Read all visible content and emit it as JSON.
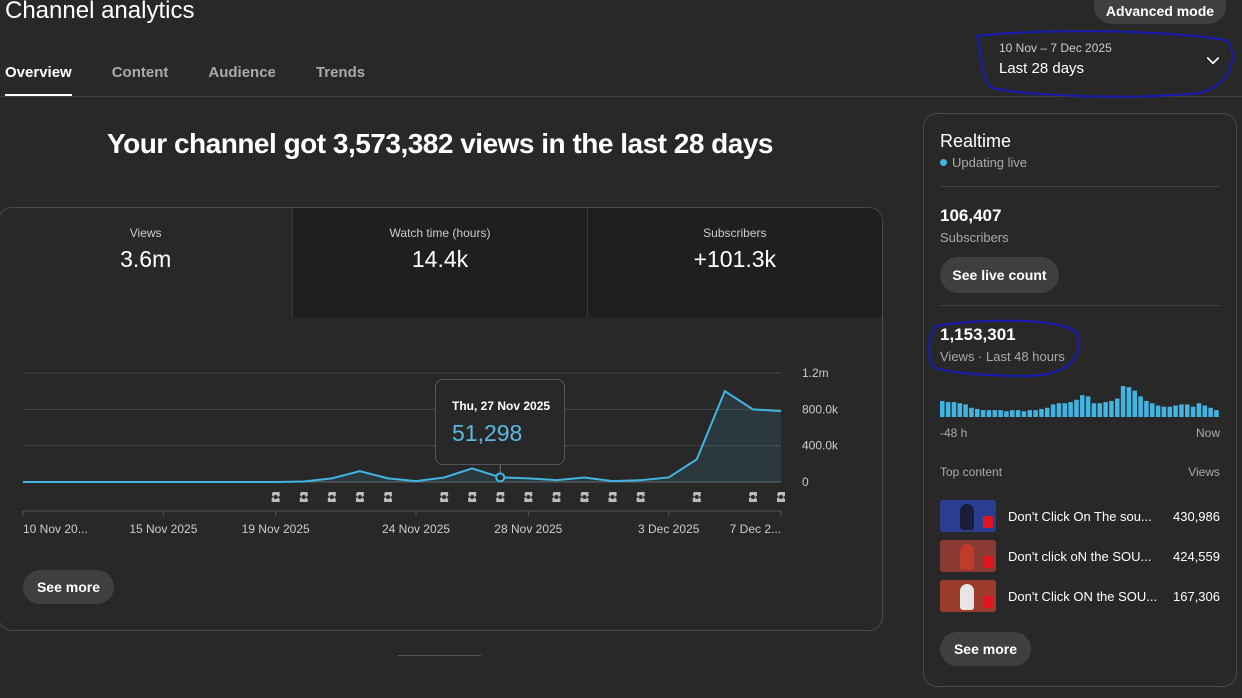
{
  "header": {
    "title": "Channel analytics",
    "advanced_mode_label": "Advanced mode"
  },
  "tabs": [
    {
      "label": "Overview",
      "active": true
    },
    {
      "label": "Content",
      "active": false
    },
    {
      "label": "Audience",
      "active": false
    },
    {
      "label": "Trends",
      "active": false
    }
  ],
  "date_picker": {
    "range": "10 Nov – 7 Dec 2025",
    "label": "Last 28 days",
    "icon": "chevron-down-icon"
  },
  "headline": "Your channel got 3,573,382 views in the last 28 days",
  "metrics": [
    {
      "label": "Views",
      "value": "3.6m"
    },
    {
      "label": "Watch time (hours)",
      "value": "14.4k"
    },
    {
      "label": "Subscribers",
      "value": "+101.3k"
    }
  ],
  "chart_data": {
    "type": "area",
    "x": [
      "10 Nov",
      "11 Nov",
      "12 Nov",
      "13 Nov",
      "14 Nov",
      "15 Nov",
      "16 Nov",
      "17 Nov",
      "18 Nov",
      "19 Nov",
      "20 Nov",
      "21 Nov",
      "22 Nov",
      "23 Nov",
      "24 Nov",
      "25 Nov",
      "26 Nov",
      "27 Nov",
      "28 Nov",
      "29 Nov",
      "30 Nov",
      "1 Dec",
      "2 Dec",
      "3 Dec",
      "4 Dec",
      "5 Dec",
      "6 Dec",
      "7 Dec"
    ],
    "series": [
      {
        "values": [
          0,
          0,
          0,
          0,
          0,
          0,
          0,
          0,
          0,
          0,
          5000,
          40000,
          120000,
          40000,
          10000,
          50000,
          150000,
          51298,
          40000,
          20000,
          50000,
          10000,
          20000,
          50000,
          250000,
          1000000,
          800000,
          780000
        ]
      }
    ],
    "x_tick_labels": [
      "10 Nov 20...",
      "15 Nov 2025",
      "19 Nov 2025",
      "24 Nov 2025",
      "28 Nov 2025",
      "3 Dec 2025",
      "7 Dec 2..."
    ],
    "y_tick_labels": [
      "1.2m",
      "800.0k",
      "400.0k",
      "0"
    ],
    "ylim": [
      0,
      1200000
    ],
    "grid": true,
    "shorts_markers_days": [
      9,
      10,
      11,
      12,
      13,
      15,
      16,
      17,
      18,
      19,
      20,
      21,
      22,
      24,
      26,
      27
    ],
    "tooltip": {
      "date": "Thu, 27 Nov 2025",
      "value": "51,298",
      "index": 17
    },
    "line_color": "#41b4e1"
  },
  "main": {
    "see_more_label": "See more"
  },
  "realtime": {
    "title": "Realtime",
    "status": "Updating live",
    "subscribers_value": "106,407",
    "subscribers_label": "Subscribers",
    "live_count_label": "See live count",
    "views_value": "1,153,301",
    "views_label": "Views · Last 48 hours",
    "bars_48h": [
      14,
      13,
      13,
      12,
      11,
      8,
      7,
      6,
      6,
      6,
      6,
      5,
      6,
      6,
      5,
      6,
      6,
      7,
      8,
      11,
      12,
      12,
      13,
      15,
      19,
      18,
      12,
      12,
      13,
      14,
      16,
      27,
      26,
      23,
      18,
      14,
      12,
      10,
      9,
      9,
      10,
      11,
      11,
      9,
      12,
      10,
      8,
      6
    ],
    "bars_left_label": "-48 h",
    "bars_right_label": "Now",
    "top_content_label": "Top content",
    "views_header": "Views",
    "top_content": [
      {
        "title": "Don't Click On The sou...",
        "views": "430,986",
        "thumb_bg": "#2a3d8f",
        "fig": "#1b1b3a"
      },
      {
        "title": "Don't click oN the SOU...",
        "views": "424,559",
        "thumb_bg": "#8a3a32",
        "fig": "#c03c2a"
      },
      {
        "title": "Don't Click ON the SOU...",
        "views": "167,306",
        "thumb_bg": "#9a3b2e",
        "fig": "#e6e6e6"
      }
    ],
    "see_more_label": "See more"
  }
}
